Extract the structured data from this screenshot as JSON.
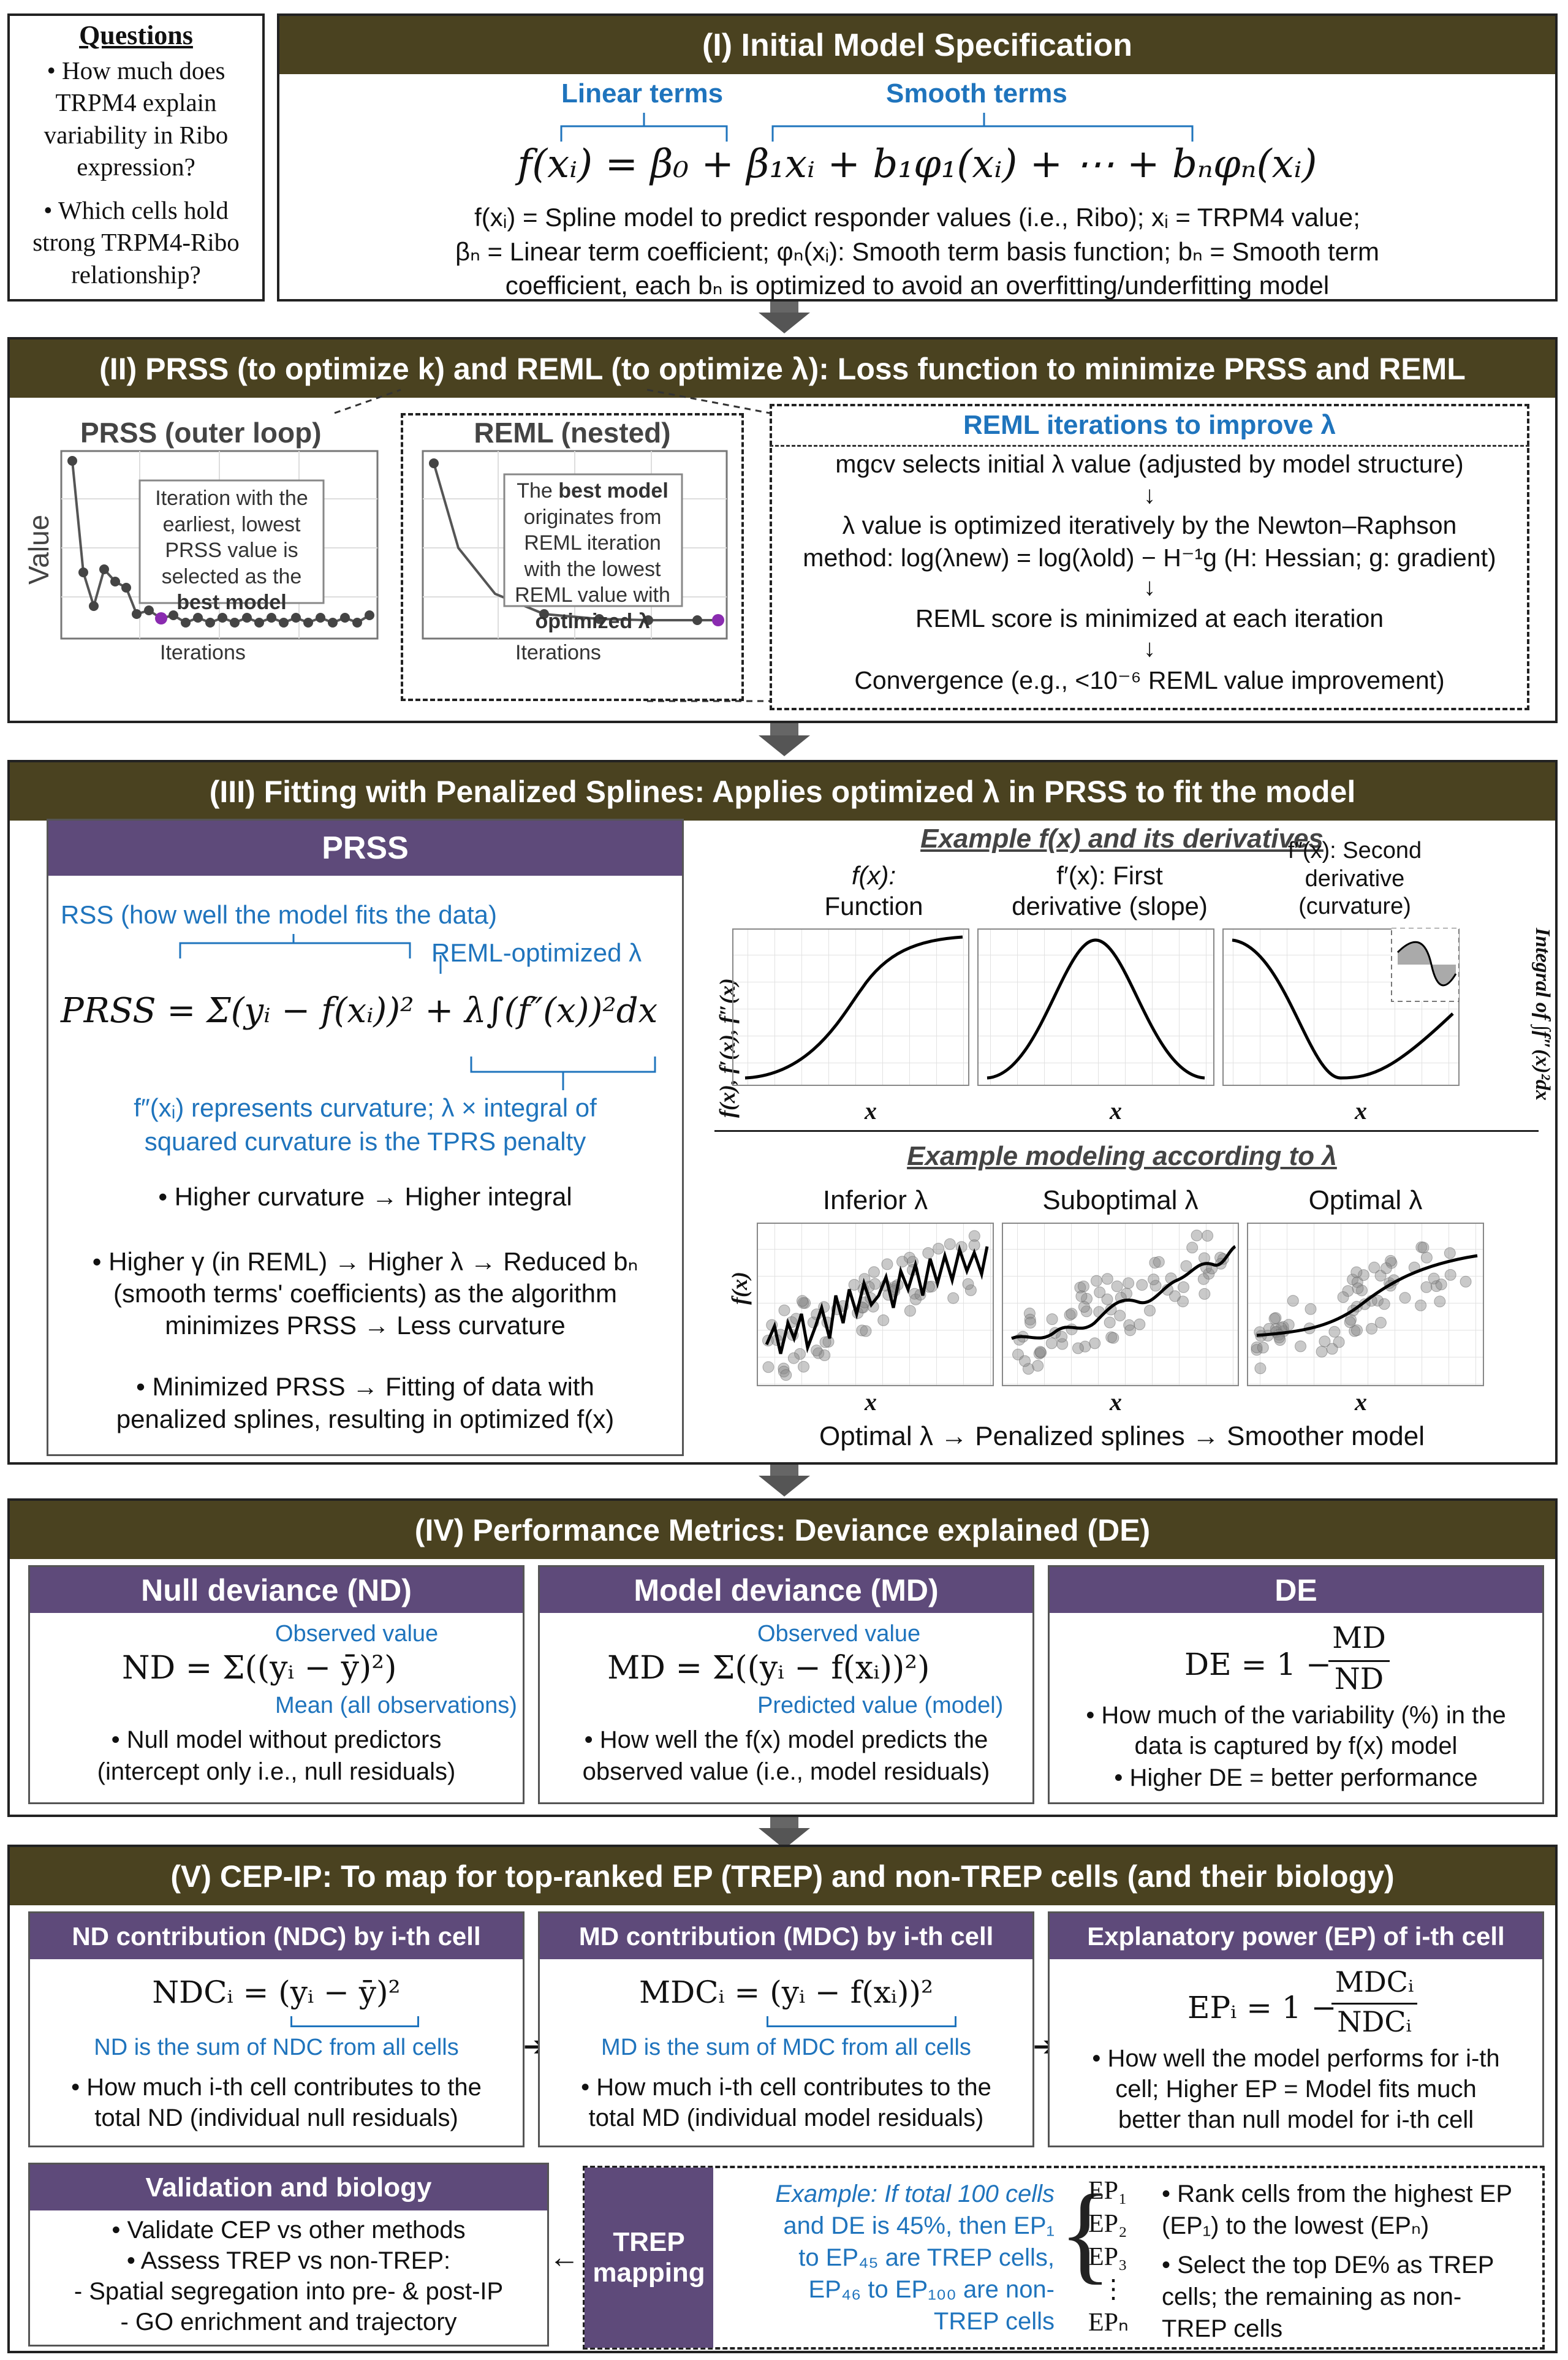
{
  "questions": {
    "title": "Questions",
    "q1": "• How much does TRPM4 explain variability in Ribo expression?",
    "q2": "• Which cells hold strong TRPM4-Ribo relationship?"
  },
  "s1": {
    "header": "(I) Initial Model Specification",
    "linear_label": "Linear terms",
    "smooth_label": "Smooth terms",
    "equation": "f(xᵢ) = β₀ + β₁xᵢ + b₁φ₁(xᵢ) + ⋯ + bₙφₙ(xᵢ)",
    "desc1": "f(xᵢ) = Spline model to predict responder values (i.e., Ribo); xᵢ = TRPM4 value;",
    "desc2": "βₙ = Linear term coefficient; φₙ(xᵢ): Smooth term basis function; bₙ = Smooth term",
    "desc3": "coefficient, each bₙ is optimized to avoid an overfitting/underfitting model"
  },
  "s2": {
    "header": "(II) PRSS (to optimize k) and REML (to optimize λ): Loss function to minimize PRSS and REML",
    "prss_title": "PRSS (outer loop)",
    "reml_title": "REML (nested)",
    "value_label": "Value",
    "iter_label": "Iterations",
    "prss_note_1": "Iteration with the earliest, lowest PRSS value is selected as the",
    "prss_note_bold": "best model",
    "reml_note_1": "The",
    "reml_note_bold1": "best model",
    "reml_note_2": "originates from REML iteration with the lowest REML value with",
    "reml_note_bold2": "optimized λ",
    "iter_title": "REML iterations to improve λ",
    "step1": "mgcv selects initial λ value (adjusted by model structure)",
    "step2a": "λ value is optimized iteratively by the Newton–Raphson",
    "step2b": "method: log(λnew) = log(λold) − H⁻¹g (H: Hessian; g: gradient)",
    "step3": "REML score is minimized at each iteration",
    "step4": "Convergence (e.g., <10⁻⁶ REML value improvement)"
  },
  "s3": {
    "header": "(III) Fitting with Penalized Splines: Applies optimized λ in PRSS to fit the model",
    "prss_header": "PRSS",
    "rss_label": "RSS (how well the model fits the data)",
    "reml_lambda_label": "REML-optimized λ",
    "prss_equation": "PRSS = Σ(yᵢ − f(xᵢ))² + λ∫(f″(x))²dx",
    "curv_note1": "f″(xᵢ) represents curvature; λ × integral of",
    "curv_note2": "squared curvature is the TPRS penalty",
    "b1": "• Higher curvature → Higher integral",
    "b2a": "• Higher γ (in REML) → Higher λ → Reduced bₙ",
    "b2b": "(smooth terms' coefficients) as the algorithm",
    "b2c": "minimizes PRSS → Less curvature",
    "b3a": "• Minimized PRSS → Fitting of data with",
    "b3b": "penalized splines, resulting in optimized f(x)",
    "ex_title": "Example f(x) and its derivatives",
    "fx_label1": "f(x):",
    "fx_label2": "Function",
    "f1_label1": "f′(x): First",
    "f1_label2": "derivative (slope)",
    "f2_label1": "f″(x): Second",
    "f2_label2": "derivative",
    "f2_label3": "(curvature)",
    "deriv_ylabel": "f(x), f′(x), f″(x)",
    "integral_label": "Integral of ∫f″(x)²dx",
    "x_label": "x",
    "model_title": "Example modeling according to λ",
    "inferior": "Inferior λ",
    "suboptimal": "Suboptimal λ",
    "optimal": "Optimal λ",
    "fx_ylabel": "f(x)",
    "bottom_caption": "Optimal λ → Penalized splines → Smoother model"
  },
  "s4": {
    "header": "(IV) Performance Metrics: Deviance explained (DE)",
    "nd_title": "Null deviance (ND)",
    "nd_eq": "ND = Σ((yᵢ − ȳ)²)",
    "nd_obs": "Observed value",
    "nd_mean": "Mean (all observations)",
    "nd_b1": "• Null model without predictors",
    "nd_b2": "(intercept only i.e., null residuals)",
    "md_title": "Model deviance (MD)",
    "md_eq": "MD = Σ((yᵢ − f(xᵢ))²)",
    "md_obs": "Observed value",
    "md_pred": "Predicted value (model)",
    "md_b1": "• How well the f(x) model predicts the",
    "md_b2": "observed value (i.e., model residuals)",
    "de_title": "DE",
    "de_eq_left": "DE = 1 −",
    "de_num": "MD",
    "de_den": "ND",
    "de_b1": "• How much of the variability (%) in the",
    "de_b2": "data is captured by f(x) model",
    "de_b3": "• Higher DE = better performance"
  },
  "s5": {
    "header": "(V) CEP-IP: To map for top-ranked EP (TREP) and non-TREP cells (and their biology)",
    "ndc_title": "ND contribution (NDC) by i-th cell",
    "ndc_eq": "NDCᵢ = (yᵢ − ȳ)²",
    "ndc_note": "ND is the sum of NDC from all cells",
    "ndc_b1": "• How much i-th cell contributes to the",
    "ndc_b2": "total ND (individual null residuals)",
    "mdc_title": "MD contribution (MDC) by i-th cell",
    "mdc_eq": "MDCᵢ = (yᵢ − f(xᵢ))²",
    "mdc_note": "MD is the sum of MDC from all cells",
    "mdc_b1": "• How much i-th cell contributes to the",
    "mdc_b2": "total MD (individual model residuals)",
    "ep_title": "Explanatory power (EP) of i-th cell",
    "ep_eq_left": "EPᵢ = 1 −",
    "ep_num": "MDCᵢ",
    "ep_den": "NDCᵢ",
    "ep_b1": "• How well the model performs for i-th",
    "ep_b2": "cell; Higher EP = Model fits much",
    "ep_b3": "better than null model for i-th cell",
    "val_title": "Validation and biology",
    "val_b1": "• Validate CEP vs other methods",
    "val_b2": "• Assess TREP vs non-TREP:",
    "val_b3": "- Spatial segregation into pre- & post-IP",
    "val_b4": "- GO enrichment and trajectory",
    "trep_label": "TREP mapping",
    "example1": "Example: If total 100 cells",
    "example2": "and DE is 45%, then EP₁",
    "example3": "to EP₄₅ are TREP cells,",
    "example4": "EP₄₆ to EP₁₀₀ are non-",
    "example5": "TREP cells",
    "ep_list": [
      "EP₁",
      "EP₂",
      "EP₃",
      "⋮",
      "EPₙ"
    ],
    "rank1": "• Rank cells from the highest EP",
    "rank2": "(EP₁) to the lowest (EPₙ)",
    "rank3": "• Select the top DE% as TREP",
    "rank4": "cells; the remaining as non-",
    "rank5": "TREP cells"
  }
}
